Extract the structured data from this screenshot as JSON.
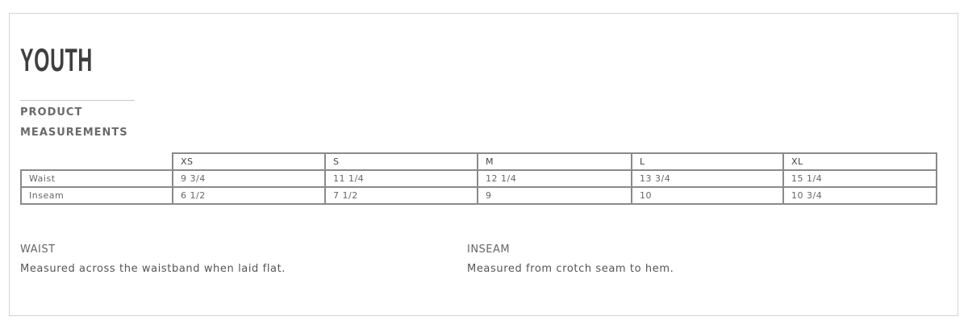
{
  "title": "YOUTH",
  "subtitle_line1": "PRODUCT",
  "subtitle_line2": "MEASUREMENTS",
  "table": {
    "sizes": [
      "XS",
      "S",
      "M",
      "L",
      "XL"
    ],
    "rows": [
      {
        "label": "Waist",
        "values": [
          "9 3/4",
          "11 1/4",
          "12 1/4",
          "13 3/4",
          "15 1/4"
        ]
      },
      {
        "label": "Inseam",
        "values": [
          "6 1/2",
          "7 1/2",
          "9",
          "10",
          "10 3/4"
        ]
      }
    ]
  },
  "notes": [
    {
      "label": "WAIST",
      "text": "Measured across the waistband when laid flat."
    },
    {
      "label": "INSEAM",
      "text": "Measured from crotch seam to hem."
    }
  ]
}
